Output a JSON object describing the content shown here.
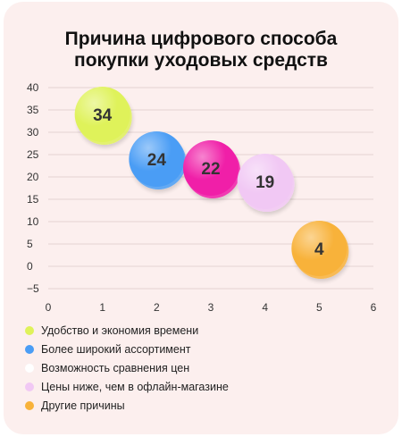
{
  "title_lines": [
    "Причина цифрового способа",
    "покупки уходовых средств"
  ],
  "chart_data": {
    "type": "scatter",
    "title": "Причина цифрового способа покупки уходовых средств",
    "xlim": [
      0,
      6
    ],
    "ylim": [
      -5,
      40
    ],
    "x_ticks": [
      0,
      1,
      2,
      3,
      4,
      5,
      6
    ],
    "y_ticks": [
      40,
      35,
      30,
      25,
      20,
      15,
      10,
      5,
      0,
      -5
    ],
    "grid": true,
    "legend_placement": "bottom-left",
    "points": [
      {
        "name": "Удобство и экономия времени",
        "x": 1,
        "y": 34,
        "label": "34",
        "color": "#dff25a"
      },
      {
        "name": "Более широкий ассортимент",
        "x": 2,
        "y": 24,
        "label": "24",
        "color": "#4a9df5"
      },
      {
        "name": "Возможность сравнения цен",
        "x": 3,
        "y": 22,
        "label": "22",
        "color": "#f01fa8"
      },
      {
        "name": "Цены ниже, чем в офлайн-магазине",
        "x": 4,
        "y": 19,
        "label": "19",
        "color": "#f1c8f4"
      },
      {
        "name": "Другие причины",
        "x": 5,
        "y": 4,
        "label": "4",
        "color": "#f8b23a"
      }
    ],
    "legend": [
      {
        "label": "Удобство и экономия времени",
        "color": "#dff25a"
      },
      {
        "label": "Более широкий ассортимент",
        "color": "#4a9df5"
      },
      {
        "label": "Возможность сравнения цен",
        "color": "#ffffff"
      },
      {
        "label": "Цены ниже, чем в офлайн-магазине",
        "color": "#f1c8f4"
      },
      {
        "label": "Другие причины",
        "color": "#f8b23a"
      }
    ]
  }
}
